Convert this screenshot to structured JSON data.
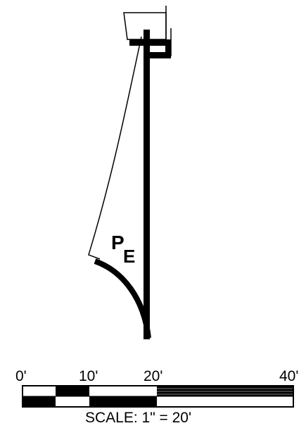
{
  "diagram": {
    "pressure_label": {
      "main": "P",
      "subscript": "E"
    },
    "scale_bar": {
      "tick_labels": [
        "0'",
        "10'",
        "20'",
        "40'"
      ],
      "caption": "SCALE:  1\" = 20'"
    }
  },
  "colors": {
    "ink": "#000000",
    "paper": "#ffffff"
  }
}
